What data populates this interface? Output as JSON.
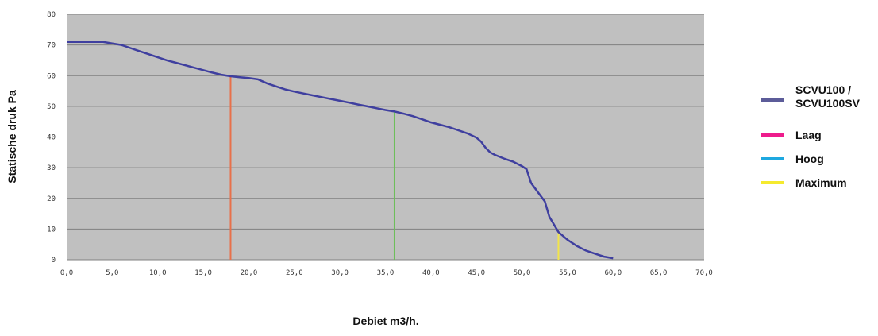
{
  "chart_data": {
    "type": "line",
    "xlabel": "Debiet m3/h.",
    "ylabel": "Statische druk Pa",
    "xlim": [
      0,
      70
    ],
    "ylim": [
      0,
      80
    ],
    "x_ticks": [
      "0,0",
      "5,0",
      "10,0",
      "15,0",
      "20,0",
      "25,0",
      "30,0",
      "35,0",
      "40,0",
      "45,0",
      "50,0",
      "55,0",
      "60,0",
      "65,0",
      "70,0"
    ],
    "y_ticks": [
      "0",
      "10",
      "20",
      "30",
      "40",
      "50",
      "60",
      "70",
      "80"
    ],
    "grid": true,
    "legend_position": "right",
    "colors": {
      "plot_background": "#c0c0c0",
      "grid": "#808080",
      "curve": "#3f3f9f",
      "laag_marker": "#e8704a",
      "hoog_marker": "#6dbe5a",
      "maximum_marker": "#f2e44a"
    },
    "series": [
      {
        "name": "SCVU100 / SCVU100SV",
        "color": "#5c5c99",
        "x": [
          0,
          1,
          2,
          3,
          4,
          5,
          6,
          7,
          8,
          9,
          10,
          11,
          12,
          13,
          14,
          15,
          16,
          17,
          18,
          19,
          20,
          21,
          22,
          23,
          24,
          25,
          26,
          27,
          28,
          29,
          30,
          31,
          32,
          33,
          34,
          35,
          36,
          37,
          38,
          39,
          40,
          41,
          42,
          43,
          44,
          45,
          45.5,
          46,
          46.5,
          47,
          48,
          49,
          50,
          50.5,
          51,
          52,
          52.5,
          53,
          54,
          55,
          56,
          57,
          58,
          59,
          60
        ],
        "y": [
          71,
          71,
          71,
          71,
          71,
          70.5,
          70,
          69,
          68,
          67,
          66,
          65,
          64.2,
          63.4,
          62.6,
          61.8,
          61,
          60.3,
          59.8,
          59.5,
          59.2,
          58.8,
          57.5,
          56.5,
          55.5,
          54.8,
          54.2,
          53.6,
          53,
          52.4,
          51.8,
          51.2,
          50.6,
          50,
          49.4,
          48.8,
          48.3,
          47.6,
          46.8,
          45.8,
          44.8,
          44,
          43.2,
          42.2,
          41.2,
          39.8,
          38.5,
          36.5,
          35,
          34.2,
          33,
          32,
          30.5,
          29.5,
          25,
          21,
          19,
          14,
          9,
          6.5,
          4.5,
          3,
          2,
          1,
          0.5
        ]
      },
      {
        "name": "Laag",
        "color": "#ee1c8c",
        "marker_x": 18,
        "marker_y": 59.8
      },
      {
        "name": "Hoog",
        "color": "#1ea8e0",
        "marker_x": 36,
        "marker_y": 48.3
      },
      {
        "name": "Maximum",
        "color": "#f5ea2e",
        "marker_x": 54,
        "marker_y": 9
      }
    ]
  }
}
